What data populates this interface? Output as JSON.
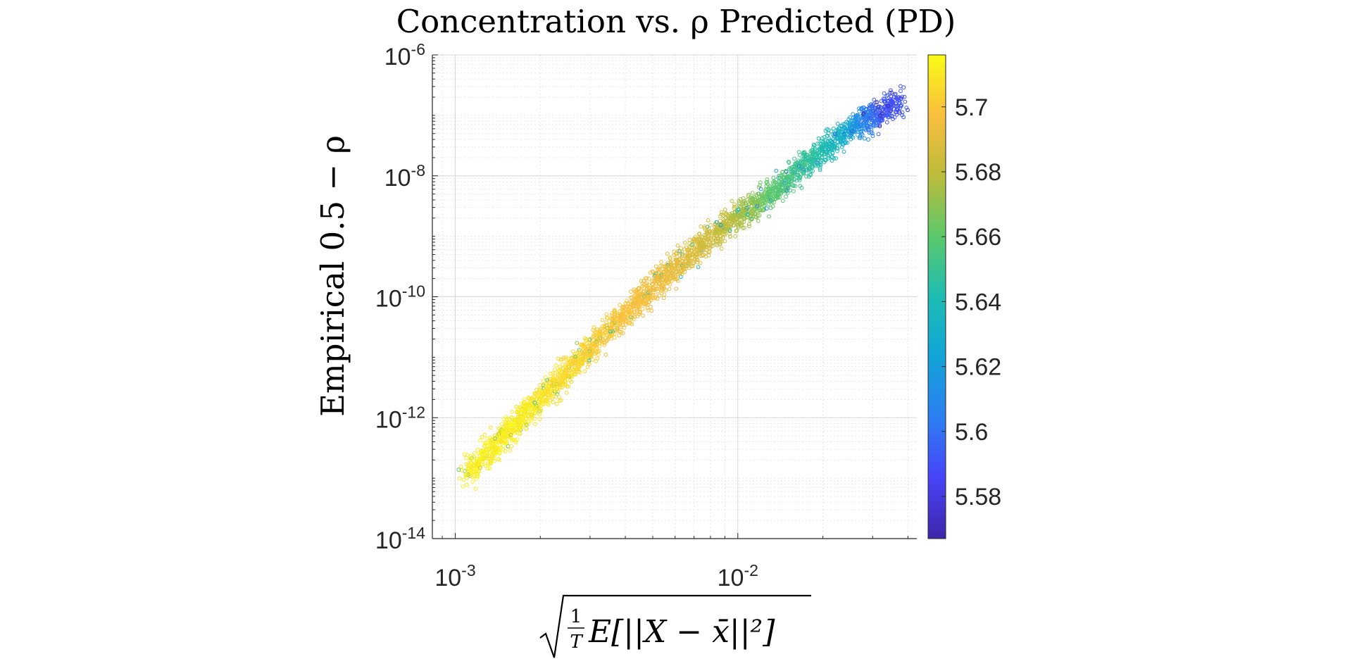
{
  "chart_data": {
    "type": "scatter",
    "title": "Concentration vs. ρ Predicted (PD)",
    "xlabel": "√( (1/T) E[||X − x̄||²] )",
    "xlabel_parts": {
      "frac_num": "1",
      "frac_den": "T",
      "body": "E[||X − x̄||²]"
    },
    "ylabel": "Empirical 0.5 − ρ",
    "x_scale": "log",
    "y_scale": "log",
    "xlim": [
      0.00083,
      0.043
    ],
    "ylim": [
      1e-14,
      1e-06
    ],
    "x_ticks": [
      {
        "value": 0.001,
        "base": "10",
        "exp": "-3"
      },
      {
        "value": 0.01,
        "base": "10",
        "exp": "-2"
      }
    ],
    "y_ticks": [
      {
        "value": 1e-14,
        "base": "10",
        "exp": "-14"
      },
      {
        "value": 1e-12,
        "base": "10",
        "exp": "-12"
      },
      {
        "value": 1e-10,
        "base": "10",
        "exp": "-10"
      },
      {
        "value": 1e-08,
        "base": "10",
        "exp": "-8"
      },
      {
        "value": 1e-06,
        "base": "10",
        "exp": "-6"
      }
    ],
    "grid": true,
    "minor_grid": true,
    "marker": "open-circle",
    "colorbar": {
      "colormap": "parula",
      "range": [
        5.567,
        5.716
      ],
      "ticks": [
        "5.58",
        "5.6",
        "5.62",
        "5.64",
        "5.66",
        "5.68",
        "5.7"
      ],
      "tick_values": [
        5.58,
        5.6,
        5.62,
        5.64,
        5.66,
        5.68,
        5.7
      ]
    },
    "trend_segments": [
      {
        "x": [
          0.0011,
          0.0025
        ],
        "y": [
          1.2e-13,
          6e-12
        ],
        "c": 5.712
      },
      {
        "x": [
          0.0025,
          0.005
        ],
        "y": [
          6e-12,
          1.5e-10
        ],
        "c": 5.7
      },
      {
        "x": [
          0.005,
          0.009
        ],
        "y": [
          1.5e-10,
          1.5e-09
        ],
        "c": 5.69
      },
      {
        "x": [
          0.009,
          0.013
        ],
        "y": [
          1.5e-09,
          5e-09
        ],
        "c": 5.672
      },
      {
        "x": [
          0.013,
          0.022
        ],
        "y": [
          5e-09,
          4e-08
        ],
        "c": 5.65
      },
      {
        "x": [
          0.022,
          0.028
        ],
        "y": [
          4e-08,
          8e-08
        ],
        "c": 5.625
      },
      {
        "x": [
          0.028,
          0.038
        ],
        "y": [
          8e-08,
          1.8e-07
        ],
        "c": 5.59
      }
    ],
    "point_count": 3200
  }
}
